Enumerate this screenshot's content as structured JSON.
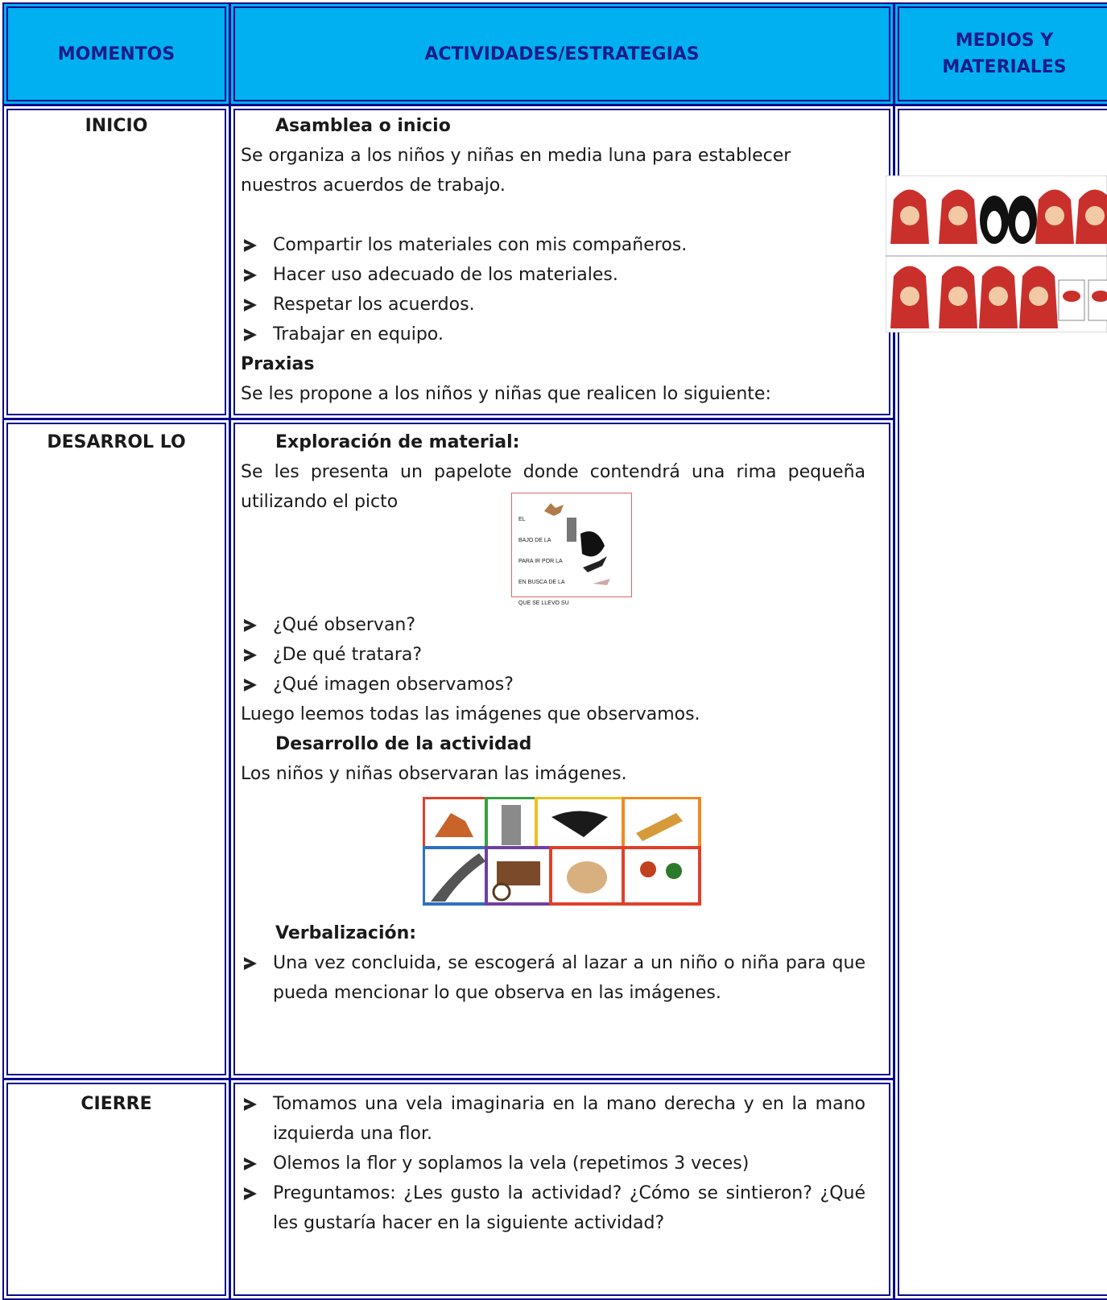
{
  "header": {
    "columns": [
      "MOMENTOS",
      "ACTIVIDADES/ESTRATEGIAS",
      "MEDIOS Y MATERIALES"
    ]
  },
  "rows": [
    {
      "moment": "INICIO",
      "heading": "Asamblea o inicio",
      "paragraph": "Se organiza a los niños y niñas en media luna para establecer nuestros acuerdos de trabajo.",
      "bullets": [
        "Compartir los materiales con mis compañeros.",
        "Hacer uso adecuado de los materiales.",
        "Respetar los acuerdos.",
        "Trabajar en equipo."
      ],
      "subheading": "Praxias",
      "subtext": "Se les propone a los niños y niñas que realicen  lo siguiente:"
    },
    {
      "moment": "DESARROL LO",
      "heading": "Exploración de material:",
      "paragraph": "Se les presenta un papelote donde  contendrá una rima pequeña  utilizando el picto",
      "pictogram": [
        "EL",
        "BAJO DE LA",
        "PARA IR POR LA",
        "EN BUSCA DE LA",
        "QUE SE LLEVO SU"
      ],
      "bullets": [
        "¿Qué observan?",
        "¿De qué tratara?",
        "¿Qué imagen observamos?"
      ],
      "text": "Luego leemos todas las imágenes que observamos.",
      "heading2": "Desarrollo de la actividad",
      "text2": "Los niños y niñas observaran las imágenes.",
      "heading3": "Verbalización:",
      "bullets2": [
        "Una vez concluida, se escogerá al lazar a un niño o niña para que pueda mencionar lo que observa en las imágenes."
      ]
    },
    {
      "moment": "CIERRE",
      "bullets": [
        "Tomamos una vela imaginaria en la mano derecha y en la mano izquierda una flor.",
        "Olemos la flor y soplamos la vela (repetimos 3 veces)",
        "Preguntamos: ¿Les gusto la actividad? ¿Cómo se sintieron? ¿Qué les gustaría hacer en la siguiente actividad?"
      ]
    }
  ]
}
